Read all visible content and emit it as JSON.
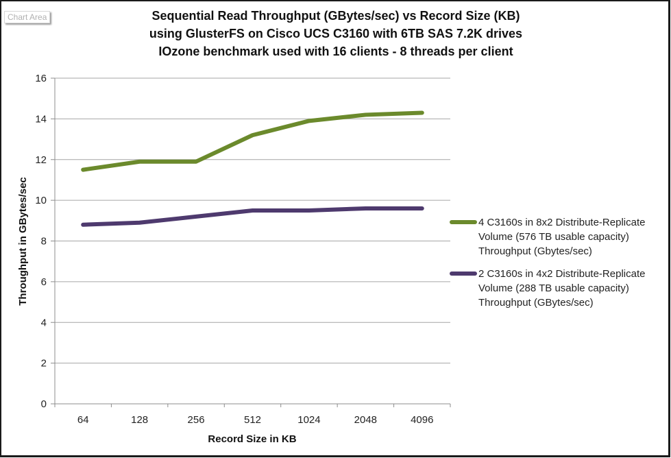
{
  "tooltip": {
    "label": "Chart Area"
  },
  "chart_data": {
    "type": "line",
    "title": [
      "Sequential Read Throughput (GBytes/sec) vs Record Size (KB)",
      "using GlusterFS on Cisco UCS C3160 with 6TB SAS 7.2K drives",
      "IOzone benchmark used with 16 clients - 8 threads per client"
    ],
    "xlabel": "Record Size in KB",
    "ylabel": "Throughput in GBytes/sec",
    "categories": [
      "64",
      "128",
      "256",
      "512",
      "1024",
      "2048",
      "4096"
    ],
    "ylim": [
      0,
      16
    ],
    "yticks": [
      "0",
      "2",
      "4",
      "6",
      "8",
      "10",
      "12",
      "14",
      "16"
    ],
    "grid": true,
    "legend_position": "right",
    "series": [
      {
        "name": "4 C3160s in 8x2 Distribute-Replicate Volume (576 TB usable capacity) Throughput (Gbytes/sec)",
        "legend_lines": [
          "4 C3160s in 8x2 Distribute-Replicate",
          "Volume (576 TB usable capacity)",
          "Throughput (Gbytes/sec)"
        ],
        "color": "#6b8a2c",
        "values": [
          11.5,
          11.9,
          11.9,
          13.2,
          13.9,
          14.2,
          14.3
        ]
      },
      {
        "name": "2 C3160s in 4x2 Distribute-Replicate Volume (288 TB usable capacity) Throughput (GBytes/sec)",
        "legend_lines": [
          "2 C3160s in 4x2 Distribute-Replicate",
          "Volume (288 TB usable capacity)",
          "Throughput (GBytes/sec)"
        ],
        "color": "#4e3a6e",
        "values": [
          8.8,
          8.9,
          9.2,
          9.5,
          9.5,
          9.6,
          9.6
        ]
      }
    ]
  }
}
